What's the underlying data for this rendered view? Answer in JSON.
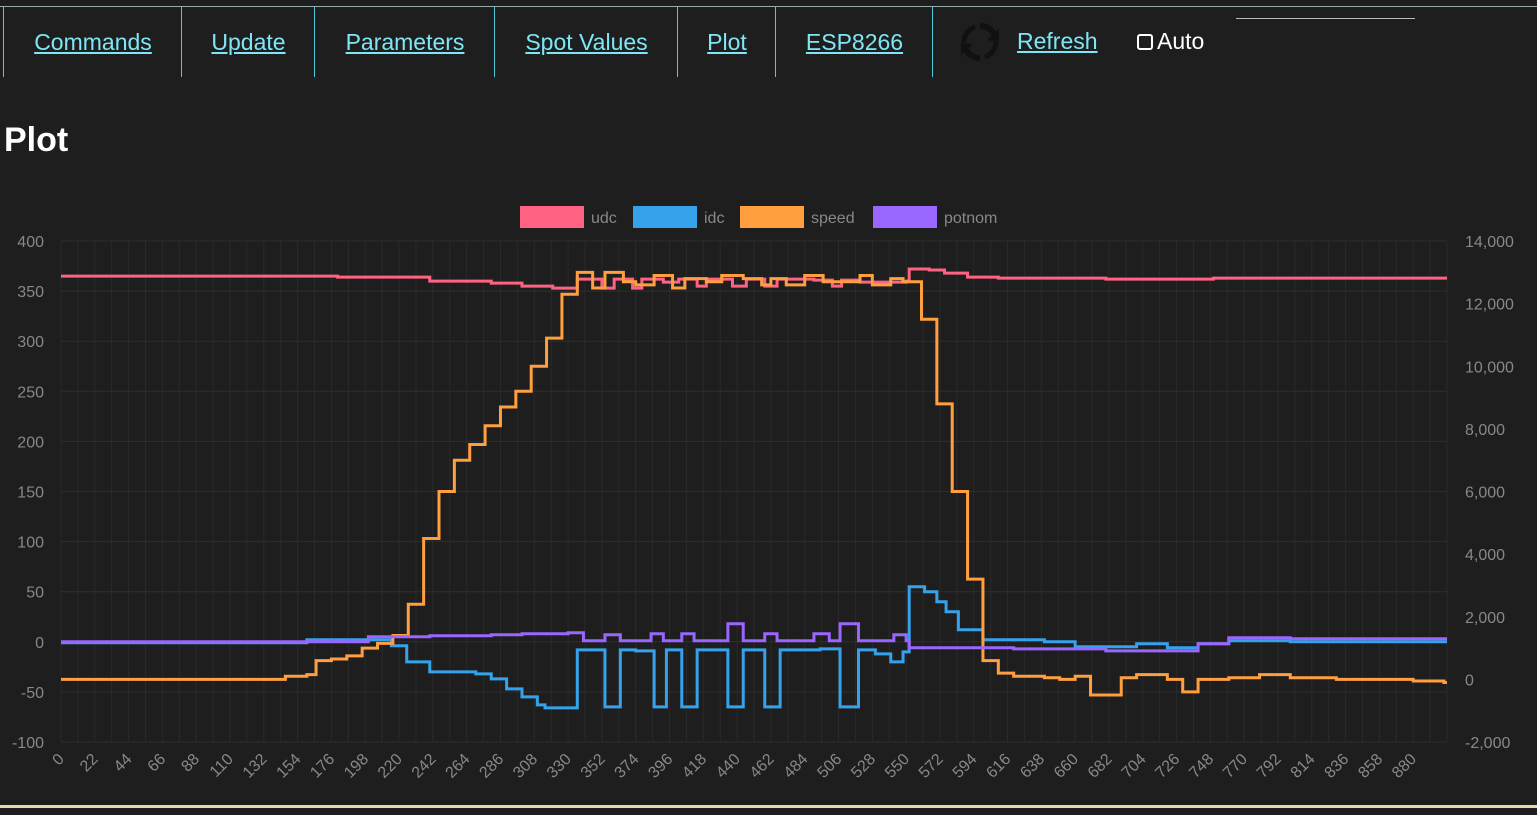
{
  "nav": {
    "items": [
      {
        "label": "Commands"
      },
      {
        "label": "Update"
      },
      {
        "label": "Parameters"
      },
      {
        "label": "Spot Values"
      },
      {
        "label": "Plot"
      },
      {
        "label": "ESP8266"
      }
    ],
    "refresh_label": "Refresh",
    "refresh_icon": "refresh-icon",
    "auto_label": "Auto"
  },
  "page": {
    "title": "Plot"
  },
  "chart_data": {
    "type": "line",
    "step": true,
    "legend_position": "top",
    "grid": true,
    "x_ticks": [
      0,
      22,
      44,
      66,
      88,
      110,
      132,
      154,
      176,
      198,
      220,
      242,
      264,
      286,
      308,
      330,
      352,
      374,
      396,
      418,
      440,
      462,
      484,
      506,
      528,
      550,
      572,
      594,
      616,
      638,
      660,
      682,
      704,
      726,
      748,
      770,
      792,
      814,
      836,
      858,
      880
    ],
    "y_left": {
      "range": [
        -100,
        400
      ],
      "ticks": [
        -100,
        -50,
        0,
        50,
        100,
        150,
        200,
        250,
        300,
        350,
        400
      ]
    },
    "y_right": {
      "range": [
        -2000,
        14000
      ],
      "ticks": [
        -2000,
        0,
        2000,
        4000,
        6000,
        8000,
        10000,
        12000,
        14000
      ],
      "tick_labels": [
        "-2,000",
        "0",
        "2,000",
        "4,000",
        "6,000",
        "8,000",
        "10,000",
        "12,000",
        "14,000"
      ]
    },
    "series": [
      {
        "name": "udc",
        "color": "#ff6384",
        "axis": "left",
        "points": [
          [
            0,
            365
          ],
          [
            180,
            364
          ],
          [
            240,
            360
          ],
          [
            280,
            358
          ],
          [
            300,
            355
          ],
          [
            320,
            353
          ],
          [
            336,
            362
          ],
          [
            350,
            362
          ],
          [
            352,
            353
          ],
          [
            360,
            362
          ],
          [
            370,
            362
          ],
          [
            372,
            353
          ],
          [
            378,
            362
          ],
          [
            390,
            362
          ],
          [
            392,
            359
          ],
          [
            402,
            362
          ],
          [
            412,
            362
          ],
          [
            414,
            355
          ],
          [
            420,
            362
          ],
          [
            435,
            362
          ],
          [
            437,
            355
          ],
          [
            446,
            362
          ],
          [
            456,
            362
          ],
          [
            458,
            355
          ],
          [
            466,
            362
          ],
          [
            480,
            362
          ],
          [
            490,
            361
          ],
          [
            500,
            361
          ],
          [
            502,
            355
          ],
          [
            508,
            361
          ],
          [
            520,
            359
          ],
          [
            540,
            359
          ],
          [
            550,
            360
          ],
          [
            552,
            372
          ],
          [
            565,
            371
          ],
          [
            575,
            368
          ],
          [
            590,
            364
          ],
          [
            610,
            363
          ],
          [
            680,
            362
          ],
          [
            750,
            363
          ],
          [
            900,
            363
          ]
        ]
      },
      {
        "name": "idc",
        "color": "#36a2eb",
        "axis": "left",
        "points": [
          [
            0,
            -1
          ],
          [
            150,
            -1
          ],
          [
            160,
            2
          ],
          [
            200,
            2
          ],
          [
            215,
            -4
          ],
          [
            225,
            -20
          ],
          [
            240,
            -30
          ],
          [
            270,
            -32
          ],
          [
            280,
            -37
          ],
          [
            290,
            -47
          ],
          [
            300,
            -55
          ],
          [
            310,
            -63
          ],
          [
            315,
            -66
          ],
          [
            330,
            -66
          ],
          [
            336,
            -8
          ],
          [
            352,
            -8
          ],
          [
            354,
            -65
          ],
          [
            362,
            -65
          ],
          [
            364,
            -8
          ],
          [
            372,
            -8
          ],
          [
            374,
            -9
          ],
          [
            384,
            -9
          ],
          [
            386,
            -65
          ],
          [
            392,
            -65
          ],
          [
            394,
            -8
          ],
          [
            398,
            -8
          ],
          [
            402,
            -8
          ],
          [
            404,
            -65
          ],
          [
            412,
            -65
          ],
          [
            414,
            -8
          ],
          [
            420,
            -8
          ],
          [
            432,
            -8
          ],
          [
            434,
            -65
          ],
          [
            442,
            -65
          ],
          [
            444,
            -8
          ],
          [
            446,
            -8
          ],
          [
            456,
            -8
          ],
          [
            458,
            -65
          ],
          [
            466,
            -65
          ],
          [
            468,
            -8
          ],
          [
            480,
            -8
          ],
          [
            494,
            -7
          ],
          [
            505,
            -7
          ],
          [
            507,
            -65
          ],
          [
            517,
            -65
          ],
          [
            519,
            -8
          ],
          [
            525,
            -8
          ],
          [
            530,
            -12
          ],
          [
            540,
            -20
          ],
          [
            548,
            -10
          ],
          [
            552,
            55
          ],
          [
            562,
            50
          ],
          [
            570,
            40
          ],
          [
            576,
            30
          ],
          [
            584,
            12
          ],
          [
            600,
            2
          ],
          [
            640,
            0
          ],
          [
            660,
            -5
          ],
          [
            690,
            -5
          ],
          [
            700,
            -2
          ],
          [
            720,
            -6
          ],
          [
            740,
            -2
          ],
          [
            760,
            1
          ],
          [
            800,
            0
          ],
          [
            900,
            0
          ]
        ]
      },
      {
        "name": "speed",
        "color": "#ff9f40",
        "axis": "right",
        "points": [
          [
            0,
            0
          ],
          [
            140,
            0
          ],
          [
            146,
            100
          ],
          [
            160,
            150
          ],
          [
            166,
            600
          ],
          [
            176,
            650
          ],
          [
            186,
            750
          ],
          [
            196,
            1000
          ],
          [
            206,
            1150
          ],
          [
            216,
            1400
          ],
          [
            226,
            2400
          ],
          [
            236,
            4500
          ],
          [
            246,
            6000
          ],
          [
            256,
            7000
          ],
          [
            266,
            7500
          ],
          [
            276,
            8100
          ],
          [
            286,
            8700
          ],
          [
            296,
            9200
          ],
          [
            306,
            10000
          ],
          [
            316,
            10900
          ],
          [
            326,
            12300
          ],
          [
            336,
            13000
          ],
          [
            346,
            12500
          ],
          [
            354,
            13000
          ],
          [
            366,
            12700
          ],
          [
            374,
            12600
          ],
          [
            386,
            12900
          ],
          [
            398,
            12500
          ],
          [
            406,
            12800
          ],
          [
            420,
            12700
          ],
          [
            430,
            12900
          ],
          [
            444,
            12800
          ],
          [
            456,
            12600
          ],
          [
            462,
            12800
          ],
          [
            472,
            12600
          ],
          [
            484,
            12900
          ],
          [
            496,
            12700
          ],
          [
            512,
            12700
          ],
          [
            520,
            12900
          ],
          [
            528,
            12600
          ],
          [
            540,
            12800
          ],
          [
            548,
            12700
          ],
          [
            560,
            11500
          ],
          [
            570,
            8800
          ],
          [
            580,
            6000
          ],
          [
            590,
            3200
          ],
          [
            600,
            600
          ],
          [
            610,
            200
          ],
          [
            620,
            100
          ],
          [
            640,
            50
          ],
          [
            650,
            0
          ],
          [
            660,
            100
          ],
          [
            670,
            -500
          ],
          [
            690,
            50
          ],
          [
            700,
            150
          ],
          [
            720,
            0
          ],
          [
            730,
            -400
          ],
          [
            740,
            0
          ],
          [
            760,
            50
          ],
          [
            780,
            150
          ],
          [
            800,
            50
          ],
          [
            830,
            0
          ],
          [
            880,
            -50
          ],
          [
            900,
            -100
          ]
        ]
      },
      {
        "name": "potnom",
        "color": "#9966ff",
        "axis": "left",
        "points": [
          [
            0,
            0
          ],
          [
            180,
            0
          ],
          [
            200,
            5
          ],
          [
            240,
            6
          ],
          [
            280,
            7
          ],
          [
            300,
            8
          ],
          [
            330,
            9
          ],
          [
            340,
            1
          ],
          [
            352,
            1
          ],
          [
            354,
            7
          ],
          [
            362,
            7
          ],
          [
            364,
            1
          ],
          [
            382,
            1
          ],
          [
            384,
            8
          ],
          [
            390,
            8
          ],
          [
            392,
            1
          ],
          [
            402,
            1
          ],
          [
            404,
            8
          ],
          [
            412,
            1
          ],
          [
            432,
            1
          ],
          [
            434,
            18
          ],
          [
            442,
            18
          ],
          [
            444,
            1
          ],
          [
            456,
            1
          ],
          [
            458,
            8
          ],
          [
            466,
            1
          ],
          [
            480,
            1
          ],
          [
            490,
            8
          ],
          [
            500,
            1
          ],
          [
            505,
            1
          ],
          [
            507,
            18
          ],
          [
            517,
            18
          ],
          [
            519,
            1
          ],
          [
            540,
            1
          ],
          [
            542,
            7
          ],
          [
            550,
            1
          ],
          [
            552,
            -6
          ],
          [
            620,
            -7
          ],
          [
            660,
            -7
          ],
          [
            680,
            -9
          ],
          [
            720,
            -9
          ],
          [
            740,
            -2
          ],
          [
            760,
            4
          ],
          [
            800,
            3
          ],
          [
            900,
            3
          ]
        ]
      }
    ]
  }
}
